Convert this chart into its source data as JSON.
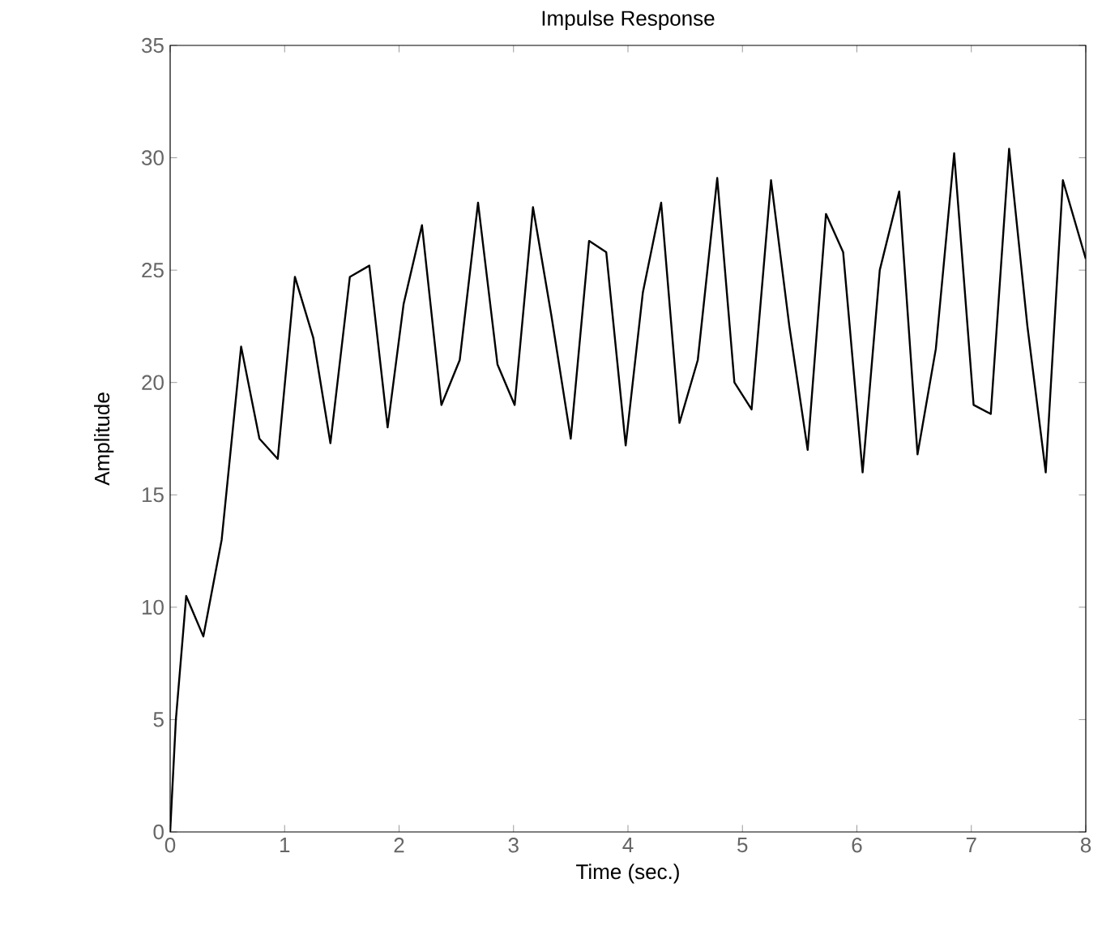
{
  "chart_data": {
    "type": "line",
    "title": "Impulse Response",
    "xlabel": "Time (sec.)",
    "ylabel": "Amplitude",
    "xlim": [
      0,
      8
    ],
    "ylim": [
      0,
      35
    ],
    "xticks": [
      0,
      1,
      2,
      3,
      4,
      5,
      6,
      7,
      8
    ],
    "yticks": [
      0,
      5,
      10,
      15,
      20,
      25,
      30,
      35
    ],
    "series": [
      {
        "color": "#000000",
        "x": [
          0,
          0.05,
          0.14,
          0.29,
          0.45,
          0.62,
          0.78,
          0.94,
          1.09,
          1.25,
          1.4,
          1.57,
          1.74,
          1.9,
          2.04,
          2.2,
          2.37,
          2.53,
          2.69,
          2.86,
          3.01,
          3.17,
          3.33,
          3.5,
          3.66,
          3.81,
          3.98,
          4.13,
          4.29,
          4.45,
          4.61,
          4.78,
          4.93,
          5.08,
          5.25,
          5.41,
          5.57,
          5.73,
          5.88,
          6.05,
          6.2,
          6.37,
          6.53,
          6.69,
          6.85,
          7.02,
          7.17,
          7.33,
          7.49,
          7.65,
          7.8,
          8.0
        ],
        "values": [
          0,
          5,
          10.5,
          8.7,
          13,
          21.6,
          17.5,
          16.6,
          24.7,
          22,
          17.3,
          24.7,
          25.2,
          18,
          23.5,
          27,
          19,
          21,
          28,
          20.8,
          19,
          27.8,
          23,
          17.5,
          26.3,
          25.8,
          17.2,
          24,
          28,
          18.2,
          21,
          29.1,
          20,
          18.8,
          29,
          22.5,
          17,
          27.5,
          25.8,
          16,
          25,
          28.5,
          16.8,
          21.5,
          30.2,
          19,
          18.6,
          30.4,
          22.5,
          16,
          29,
          25.5
        ]
      }
    ]
  }
}
